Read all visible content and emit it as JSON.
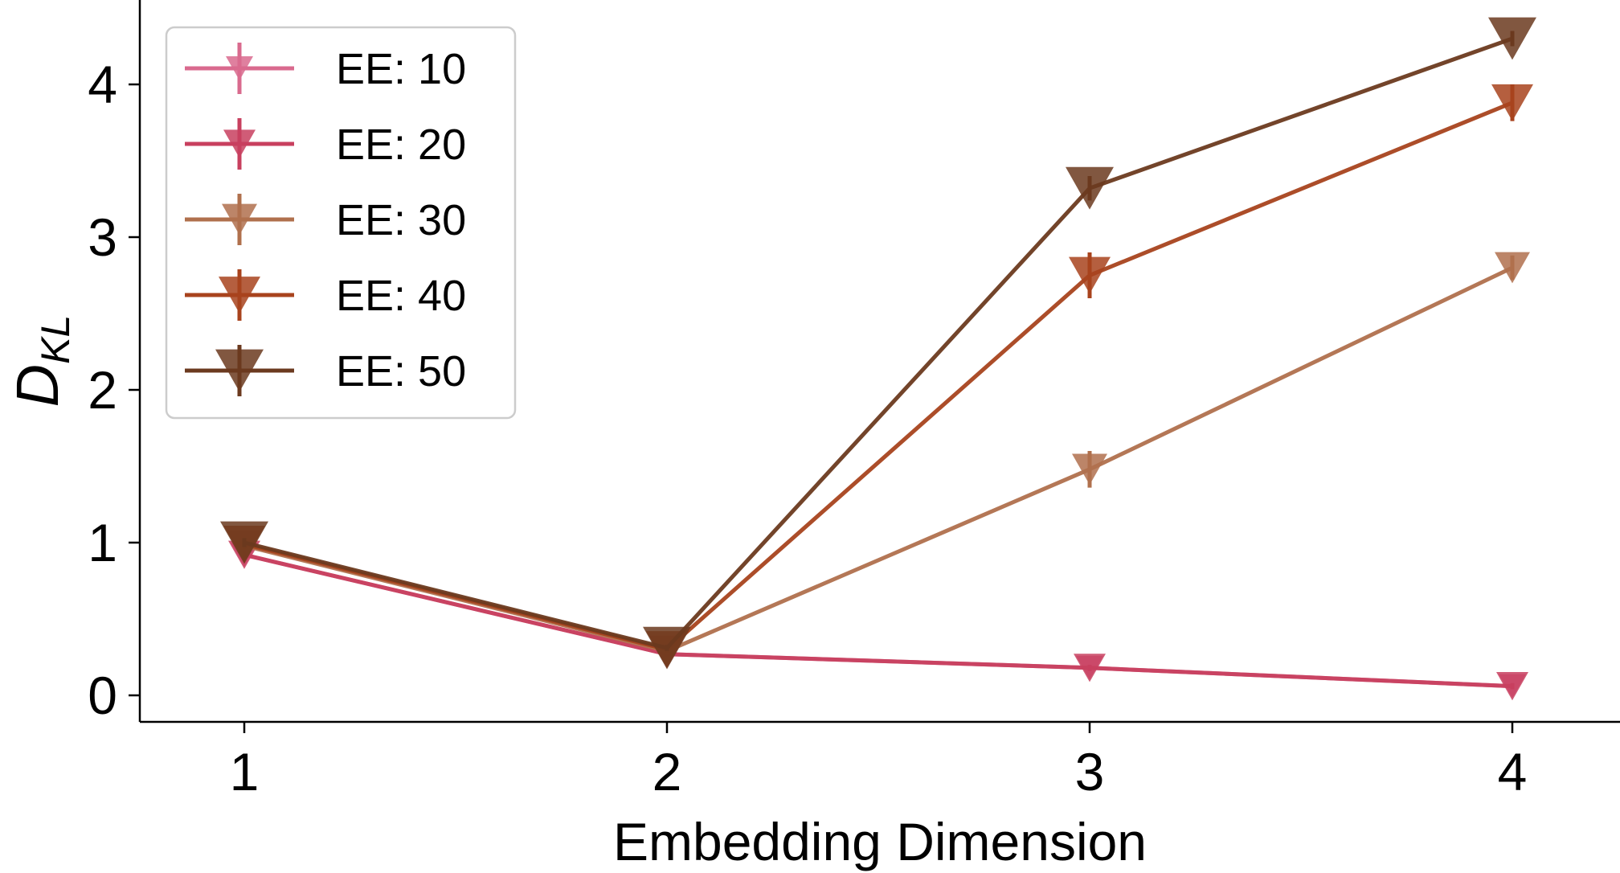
{
  "chart_data": {
    "type": "line",
    "xlabel": "Embedding Dimension",
    "ylabel": "D",
    "ylabel_subscript": "KL",
    "x": [
      1,
      2,
      3,
      4
    ],
    "xticks": [
      "1",
      "2",
      "3",
      "4"
    ],
    "yticks": [
      "0",
      "1",
      "2",
      "3",
      "4"
    ],
    "xlim": [
      0.75,
      4.25
    ],
    "ylim": [
      -0.18,
      4.55
    ],
    "grid": false,
    "legend_position": "top-left",
    "marker": "triangle-down",
    "series": [
      {
        "name": "EE: 10",
        "color": "#d96a8e",
        "values": [
          0.92,
          0.27,
          0.18,
          0.06
        ],
        "errors": [
          0.03,
          0.02,
          0.02,
          0.02
        ]
      },
      {
        "name": "EE: 20",
        "color": "#c8405f",
        "values": [
          0.92,
          0.27,
          0.18,
          0.06
        ],
        "errors": [
          0.03,
          0.02,
          0.02,
          0.02
        ]
      },
      {
        "name": "EE: 30",
        "color": "#b0704d",
        "values": [
          0.98,
          0.29,
          1.48,
          2.8
        ],
        "errors": [
          0.03,
          0.02,
          0.12,
          0.08
        ]
      },
      {
        "name": "EE: 40",
        "color": "#a8431d",
        "values": [
          0.99,
          0.3,
          2.75,
          3.88
        ],
        "errors": [
          0.03,
          0.02,
          0.15,
          0.12
        ]
      },
      {
        "name": "EE: 50",
        "color": "#6b3a1f",
        "values": [
          1.0,
          0.31,
          3.32,
          4.3
        ],
        "errors": [
          0.03,
          0.02,
          0.08,
          0.05
        ]
      }
    ]
  }
}
